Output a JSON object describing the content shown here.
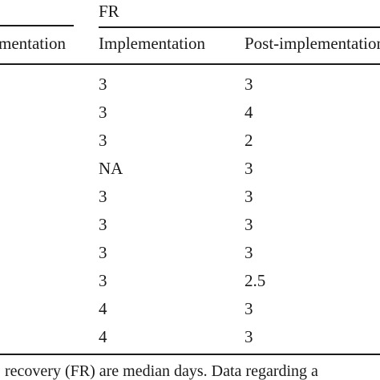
{
  "table": {
    "group_header": "FR",
    "columns": [
      "mentation",
      "Implementation",
      "Post-implementation"
    ],
    "rows": [
      {
        "implementation": "3",
        "post_implementation": "3"
      },
      {
        "implementation": "3",
        "post_implementation": "4"
      },
      {
        "implementation": "3",
        "post_implementation": "2"
      },
      {
        "implementation": "NA",
        "post_implementation": "3"
      },
      {
        "implementation": "3",
        "post_implementation": "3"
      },
      {
        "implementation": "3",
        "post_implementation": "3"
      },
      {
        "implementation": "3",
        "post_implementation": "3"
      },
      {
        "implementation": "3",
        "post_implementation": "2.5"
      },
      {
        "implementation": "4",
        "post_implementation": "3"
      },
      {
        "implementation": "4",
        "post_implementation": "3"
      }
    ]
  },
  "footnote": ". recovery (FR) are median days. Data regarding a"
}
